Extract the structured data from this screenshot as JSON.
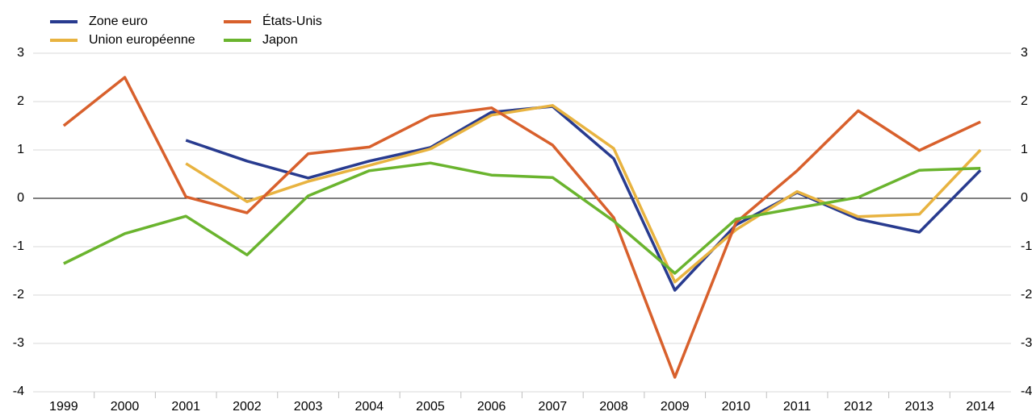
{
  "chart_data": {
    "type": "line",
    "categories": [
      "1999",
      "2000",
      "2001",
      "2002",
      "2003",
      "2004",
      "2005",
      "2006",
      "2007",
      "2008",
      "2009",
      "2010",
      "2011",
      "2012",
      "2013",
      "2014"
    ],
    "series": [
      {
        "name": "Zone euro",
        "color": "#283b8f",
        "values": [
          null,
          null,
          1.2,
          0.77,
          0.42,
          0.77,
          1.05,
          1.78,
          1.9,
          0.82,
          -1.9,
          -0.55,
          0.12,
          -0.43,
          -0.7,
          0.58
        ]
      },
      {
        "name": "Union européenne",
        "color": "#e8b340",
        "values": [
          null,
          null,
          0.72,
          -0.07,
          0.35,
          0.68,
          1.02,
          1.72,
          1.92,
          1.03,
          -1.73,
          -0.65,
          0.14,
          -0.38,
          -0.33,
          1.0
        ]
      },
      {
        "name": "États-Unis",
        "color": "#d8602c",
        "values": [
          1.5,
          2.5,
          0.03,
          -0.3,
          0.92,
          1.06,
          1.7,
          1.87,
          1.1,
          -0.4,
          -3.7,
          -0.5,
          0.57,
          1.81,
          0.99,
          1.58
        ]
      },
      {
        "name": "Japon",
        "color": "#6ab42e",
        "values": [
          -1.35,
          -0.73,
          -0.37,
          -1.17,
          0.05,
          0.57,
          0.73,
          0.48,
          0.43,
          -0.47,
          -1.55,
          -0.43,
          -0.2,
          0.02,
          0.58,
          0.62
        ]
      }
    ],
    "ylim": [
      -4,
      3
    ],
    "yticks": [
      -4,
      -3,
      -2,
      -1,
      0,
      1,
      2,
      3
    ],
    "grid": true
  }
}
